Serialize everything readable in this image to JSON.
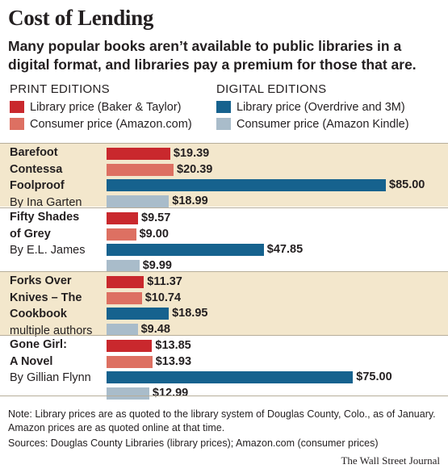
{
  "title": "Cost of Lending",
  "subtitle": "Many popular books aren’t available to public libraries in a digital format, and libraries pay a premium for those that are.",
  "legend": {
    "print": {
      "heading": "PRINT EDITIONS",
      "items": [
        {
          "label": "Library price (Baker & Taylor)",
          "color": "#c9282d"
        },
        {
          "label": "Consumer price (Amazon.com)",
          "color": "#dd7062"
        }
      ]
    },
    "digital": {
      "heading": "DIGITAL EDITIONS",
      "items": [
        {
          "label": "Library price (Overdrive and 3M)",
          "color": "#16628e"
        },
        {
          "label": "Consumer price (Amazon Kindle)",
          "color": "#a9bcca"
        }
      ]
    }
  },
  "chart_data": {
    "type": "bar",
    "orientation": "horizontal",
    "categories": [
      {
        "title_lines": [
          "Barefoot",
          "Contessa",
          "Foolproof"
        ],
        "author": "By Ina Garten",
        "shaded": true
      },
      {
        "title_lines": [
          "Fifty Shades",
          "of Grey"
        ],
        "author": "By E.L. James",
        "shaded": false
      },
      {
        "title_lines": [
          "Forks Over",
          "Knives – The",
          "Cookbook"
        ],
        "author": "multiple authors",
        "shaded": true
      },
      {
        "title_lines": [
          "Gone Girl:",
          "A Novel"
        ],
        "author": "By Gillian Flynn",
        "shaded": false
      }
    ],
    "series": [
      {
        "name": "Library price (Baker & Taylor)",
        "color": "#c9282d",
        "values": [
          19.39,
          9.57,
          11.37,
          13.85
        ],
        "labels": [
          "$19.39",
          "$9.57",
          "$11.37",
          "$13.85"
        ]
      },
      {
        "name": "Consumer price (Amazon.com)",
        "color": "#dd7062",
        "values": [
          20.39,
          9.0,
          10.74,
          13.93
        ],
        "labels": [
          "$20.39",
          "$9.00",
          "$10.74",
          "$13.93"
        ]
      },
      {
        "name": "Library price (Overdrive and 3M)",
        "color": "#16628e",
        "values": [
          85.0,
          47.85,
          18.95,
          75.0
        ],
        "labels": [
          "$85.00",
          "$47.85",
          "$18.95",
          "$75.00"
        ]
      },
      {
        "name": "Consumer price (Amazon Kindle)",
        "color": "#a9bcca",
        "values": [
          18.99,
          9.99,
          9.48,
          12.99
        ],
        "labels": [
          "$18.99",
          "$9.99",
          "$9.48",
          "$12.99"
        ]
      }
    ],
    "xlim": [
      0,
      85
    ],
    "grid": false,
    "legend_position": "top"
  },
  "note": "Note: Library prices are as quoted to the library system of Douglas County, Colo., as of January. Amazon prices are as quoted online at that time.",
  "source": "Sources: Douglas County Libraries (library prices); Amazon.com (consumer prices)",
  "credit": "The Wall Street Journal",
  "colors": {
    "band": "#f3e7cc",
    "text": "#231f20"
  }
}
